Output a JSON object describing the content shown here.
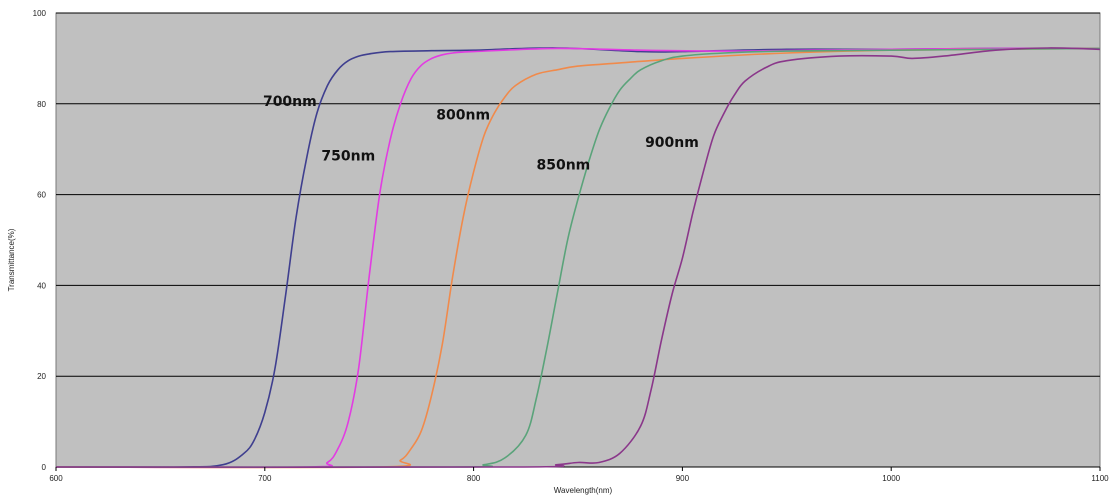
{
  "chart_data": {
    "type": "line",
    "xlabel": "Wavelength(nm)",
    "ylabel": "Transmittance(%)",
    "xlim": [
      600,
      1100
    ],
    "ylim": [
      0,
      100
    ],
    "xticks": [
      600,
      700,
      800,
      900,
      1000,
      1100
    ],
    "yticks": [
      0,
      20,
      40,
      60,
      80,
      100
    ],
    "grid": "horizontal",
    "background": "#c0c0c0",
    "series": [
      {
        "name": "700nm",
        "color": "#3f3f8f",
        "x": [
          600,
          660,
          680,
          690,
          695,
          700,
          705,
          710,
          715,
          720,
          725,
          730,
          735,
          740,
          745,
          750,
          760,
          780,
          800,
          840,
          880,
          900,
          950,
          1000,
          1050,
          1100
        ],
        "y": [
          0,
          0,
          0.5,
          3,
          6,
          12,
          22,
          38,
          55,
          68,
          78,
          84,
          87.5,
          89.5,
          90.5,
          91,
          91.5,
          91.7,
          91.8,
          92.3,
          91.5,
          91.5,
          92,
          92,
          92.2,
          92.2
        ]
      },
      {
        "name": "750nm",
        "color": "#e23ce2",
        "x": [
          600,
          720,
          730,
          735,
          740,
          745,
          750,
          755,
          760,
          765,
          770,
          775,
          780,
          785,
          790,
          800,
          840,
          880,
          920,
          960,
          1000,
          1050,
          1100
        ],
        "y": [
          0,
          0,
          1,
          4,
          10,
          22,
          42,
          60,
          72,
          80,
          85.5,
          88.5,
          90,
          90.8,
          91.2,
          91.5,
          92.2,
          91.8,
          91.6,
          91.8,
          92,
          92.2,
          92.2
        ]
      },
      {
        "name": "800nm",
        "color": "#f08a4b",
        "x": [
          600,
          755,
          765,
          770,
          775,
          780,
          785,
          790,
          795,
          800,
          805,
          810,
          815,
          820,
          830,
          840,
          850,
          870,
          900,
          950,
          1000,
          1050,
          1100
        ],
        "y": [
          0,
          0,
          1.5,
          4,
          8,
          16,
          27,
          42,
          55,
          65,
          73,
          78,
          81.5,
          84,
          86.5,
          87.5,
          88.3,
          89,
          90,
          91.2,
          91.8,
          92,
          92.2
        ]
      },
      {
        "name": "850nm",
        "color": "#5aa37a",
        "x": [
          600,
          790,
          805,
          815,
          825,
          830,
          835,
          840,
          845,
          850,
          855,
          860,
          865,
          870,
          875,
          880,
          890,
          900,
          920,
          950,
          1000,
          1050,
          1100
        ],
        "y": [
          0,
          0,
          0.5,
          2,
          7,
          15,
          26,
          38,
          50,
          59,
          67,
          74,
          79,
          83,
          85.5,
          87.5,
          89.5,
          90.5,
          91.2,
          91.6,
          91.8,
          92,
          92.2
        ]
      },
      {
        "name": "900nm",
        "color": "#8a378a",
        "x": [
          600,
          820,
          840,
          850,
          860,
          870,
          880,
          885,
          890,
          895,
          900,
          905,
          910,
          915,
          920,
          925,
          930,
          940,
          950,
          975,
          1000,
          1010,
          1025,
          1050,
          1075,
          1100
        ],
        "y": [
          0,
          0,
          0.5,
          1,
          1,
          3,
          9,
          17,
          28,
          38,
          46,
          56,
          65,
          73,
          78,
          82,
          85,
          88,
          89.5,
          90.5,
          90.5,
          90,
          90.5,
          91.8,
          92.3,
          92
        ]
      }
    ],
    "annotations": [
      {
        "text": "700nm",
        "x": 712,
        "y": 79.5
      },
      {
        "text": "750nm",
        "x": 740,
        "y": 67.5
      },
      {
        "text": "800nm",
        "x": 795,
        "y": 76.5
      },
      {
        "text": "850nm",
        "x": 843,
        "y": 65.5
      },
      {
        "text": "900nm",
        "x": 895,
        "y": 70.5
      }
    ]
  }
}
